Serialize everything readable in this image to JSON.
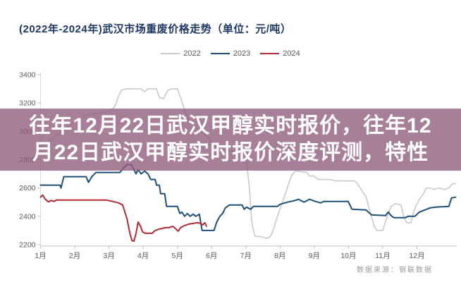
{
  "header": {
    "title": "(2022年-2024年)武汉市场重废价格走势（单位：元/吨）"
  },
  "legend": {
    "items": [
      {
        "label": "2022",
        "color": "#c9c9c9"
      },
      {
        "label": "2023",
        "color": "#1f4e79"
      },
      {
        "label": "2024",
        "color": "#b22a33"
      }
    ]
  },
  "overlay": {
    "text": "往年12月22日武汉甲醇实时报价，往年12月22日武汉甲醇实时报价深度评测，特性",
    "lines": [
      "往年12月22日武汉甲醇实时报价，往年12",
      "月22日武汉甲醇实时报价深度评测，特性"
    ],
    "background_rgba": "rgba(145,95,126,0.8)",
    "background_hex": "#a77f98",
    "text_color": "#ffffff"
  },
  "footer": {
    "source": "数据来源：钢联数据"
  },
  "chart_data": {
    "type": "line",
    "title": "(2022年-2024年)武汉市场重废价格走势（单位：元/吨）",
    "unit": "元/吨",
    "categories": [
      "1月",
      "2月",
      "3月",
      "4月",
      "5月",
      "6月",
      "7月",
      "8月",
      "9月",
      "10月",
      "11月",
      "12月"
    ],
    "yticks": [
      3400,
      3200,
      3000,
      2800,
      2600,
      2400,
      2200
    ],
    "ylim": [
      2200,
      3400
    ],
    "grid": false,
    "legend_position": "top",
    "axis_color": "#c2c2c2",
    "tick_label_color": "#595959",
    "series": [
      {
        "name": "2022",
        "color": "#c9c9c9",
        "width": 1.6,
        "points": [
          [
            1.0,
            2890
          ],
          [
            1.27,
            2935
          ],
          [
            1.68,
            3010
          ],
          [
            2.09,
            3085
          ],
          [
            2.4,
            3120
          ],
          [
            2.91,
            3135
          ],
          [
            3.07,
            3150
          ],
          [
            3.18,
            3180
          ],
          [
            3.28,
            3250
          ],
          [
            3.36,
            3290
          ],
          [
            3.48,
            3300
          ],
          [
            3.94,
            3300
          ],
          [
            4.04,
            3280
          ],
          [
            4.14,
            3300
          ],
          [
            4.39,
            3300
          ],
          [
            4.47,
            3240
          ],
          [
            4.59,
            3230
          ],
          [
            4.72,
            3290
          ],
          [
            4.84,
            3300
          ],
          [
            5.0,
            3300
          ],
          [
            5.09,
            3240
          ],
          [
            5.21,
            3150
          ],
          [
            5.33,
            3080
          ],
          [
            5.48,
            3040
          ],
          [
            5.68,
            3000
          ],
          [
            5.89,
            2960
          ],
          [
            6.09,
            2900
          ],
          [
            6.24,
            2870
          ],
          [
            6.61,
            2860
          ],
          [
            6.91,
            2855
          ],
          [
            7.02,
            2800
          ],
          [
            7.1,
            2600
          ],
          [
            7.18,
            2350
          ],
          [
            7.26,
            2260
          ],
          [
            7.47,
            2255
          ],
          [
            7.59,
            2245
          ],
          [
            7.71,
            2255
          ],
          [
            7.8,
            2300
          ],
          [
            7.92,
            2400
          ],
          [
            8.04,
            2480
          ],
          [
            8.17,
            2570
          ],
          [
            8.29,
            2660
          ],
          [
            8.37,
            2700
          ],
          [
            8.45,
            2720
          ],
          [
            8.78,
            2710
          ],
          [
            8.86,
            2685
          ],
          [
            8.99,
            2685
          ],
          [
            9.11,
            2660
          ],
          [
            9.48,
            2660
          ],
          [
            9.6,
            2650
          ],
          [
            10.18,
            2650
          ],
          [
            10.26,
            2630
          ],
          [
            10.34,
            2600
          ],
          [
            10.42,
            2570
          ],
          [
            10.51,
            2540
          ],
          [
            10.63,
            2430
          ],
          [
            10.75,
            2330
          ],
          [
            10.83,
            2300
          ],
          [
            11.0,
            2300
          ],
          [
            11.12,
            2390
          ],
          [
            11.24,
            2470
          ],
          [
            11.37,
            2490
          ],
          [
            11.53,
            2480
          ],
          [
            11.61,
            2400
          ],
          [
            11.7,
            2355
          ],
          [
            11.82,
            2355
          ],
          [
            11.9,
            2430
          ],
          [
            11.98,
            2480
          ],
          [
            12.07,
            2520
          ],
          [
            12.19,
            2560
          ],
          [
            12.27,
            2600
          ],
          [
            12.39,
            2600
          ],
          [
            12.48,
            2590
          ],
          [
            12.64,
            2600
          ],
          [
            12.8,
            2590
          ],
          [
            12.93,
            2600
          ],
          [
            13.03,
            2630
          ],
          [
            13.13,
            2630
          ]
        ]
      },
      {
        "name": "2023",
        "color": "#1f4e79",
        "width": 2,
        "points": [
          [
            1.0,
            2620
          ],
          [
            1.57,
            2620
          ],
          [
            1.6,
            2600
          ],
          [
            1.68,
            2680
          ],
          [
            2.33,
            2680
          ],
          [
            2.4,
            2640
          ],
          [
            2.5,
            2680
          ],
          [
            2.62,
            2710
          ],
          [
            3.32,
            2710
          ],
          [
            3.42,
            2740
          ],
          [
            3.53,
            2765
          ],
          [
            3.65,
            2765
          ],
          [
            3.73,
            2730
          ],
          [
            3.79,
            2700
          ],
          [
            3.85,
            2730
          ],
          [
            3.94,
            2700
          ],
          [
            4.04,
            2720
          ],
          [
            4.14,
            2700
          ],
          [
            4.22,
            2660
          ],
          [
            4.35,
            2660
          ],
          [
            4.39,
            2620
          ],
          [
            4.47,
            2620
          ],
          [
            4.51,
            2560
          ],
          [
            4.63,
            2560
          ],
          [
            4.68,
            2470
          ],
          [
            5.0,
            2470
          ],
          [
            5.07,
            2420
          ],
          [
            5.13,
            2430
          ],
          [
            5.21,
            2400
          ],
          [
            5.29,
            2420
          ],
          [
            5.37,
            2400
          ],
          [
            5.46,
            2415
          ],
          [
            5.54,
            2400
          ],
          [
            5.64,
            2415
          ],
          [
            5.72,
            2300
          ],
          [
            6.07,
            2300
          ],
          [
            6.15,
            2360
          ],
          [
            6.24,
            2400
          ],
          [
            6.32,
            2420
          ],
          [
            6.4,
            2460
          ],
          [
            6.52,
            2480
          ],
          [
            6.89,
            2480
          ],
          [
            6.95,
            2450
          ],
          [
            7.02,
            2465
          ],
          [
            7.14,
            2450
          ],
          [
            7.22,
            2470
          ],
          [
            7.92,
            2470
          ],
          [
            8.0,
            2485
          ],
          [
            8.21,
            2500
          ],
          [
            8.41,
            2510
          ],
          [
            8.54,
            2520
          ],
          [
            8.7,
            2500
          ],
          [
            8.86,
            2520
          ],
          [
            9.03,
            2505
          ],
          [
            9.19,
            2495
          ],
          [
            9.27,
            2505
          ],
          [
            9.99,
            2505
          ],
          [
            10.1,
            2450
          ],
          [
            10.51,
            2445
          ],
          [
            10.67,
            2410
          ],
          [
            11.08,
            2405
          ],
          [
            11.16,
            2430
          ],
          [
            11.24,
            2405
          ],
          [
            11.33,
            2390
          ],
          [
            11.66,
            2390
          ],
          [
            11.74,
            2400
          ],
          [
            11.94,
            2400
          ],
          [
            12.07,
            2430
          ],
          [
            12.23,
            2445
          ],
          [
            12.39,
            2460
          ],
          [
            12.56,
            2465
          ],
          [
            12.93,
            2470
          ],
          [
            13.01,
            2530
          ],
          [
            13.13,
            2535
          ]
        ]
      },
      {
        "name": "2024",
        "color": "#b22a33",
        "width": 2,
        "points": [
          [
            1.0,
            2535
          ],
          [
            1.06,
            2550
          ],
          [
            1.14,
            2520
          ],
          [
            1.23,
            2502
          ],
          [
            1.31,
            2512
          ],
          [
            1.39,
            2505
          ],
          [
            1.47,
            2515
          ],
          [
            2.91,
            2515
          ],
          [
            3.11,
            2505
          ],
          [
            3.28,
            2495
          ],
          [
            3.4,
            2480
          ],
          [
            3.53,
            2380
          ],
          [
            3.61,
            2280
          ],
          [
            3.67,
            2230
          ],
          [
            3.73,
            2225
          ],
          [
            3.79,
            2280
          ],
          [
            3.85,
            2360
          ],
          [
            3.92,
            2330
          ],
          [
            3.98,
            2290
          ],
          [
            4.06,
            2280
          ],
          [
            4.26,
            2280
          ],
          [
            4.35,
            2300
          ],
          [
            4.47,
            2310
          ],
          [
            4.66,
            2320
          ],
          [
            4.76,
            2320
          ],
          [
            4.86,
            2330
          ],
          [
            4.96,
            2310
          ],
          [
            5.02,
            2295
          ],
          [
            5.09,
            2320
          ],
          [
            5.21,
            2335
          ],
          [
            5.33,
            2345
          ],
          [
            5.46,
            2350
          ],
          [
            5.58,
            2355
          ],
          [
            5.68,
            2350
          ],
          [
            5.74,
            2340
          ],
          [
            5.8,
            2355
          ],
          [
            5.85,
            2330
          ]
        ]
      }
    ]
  }
}
